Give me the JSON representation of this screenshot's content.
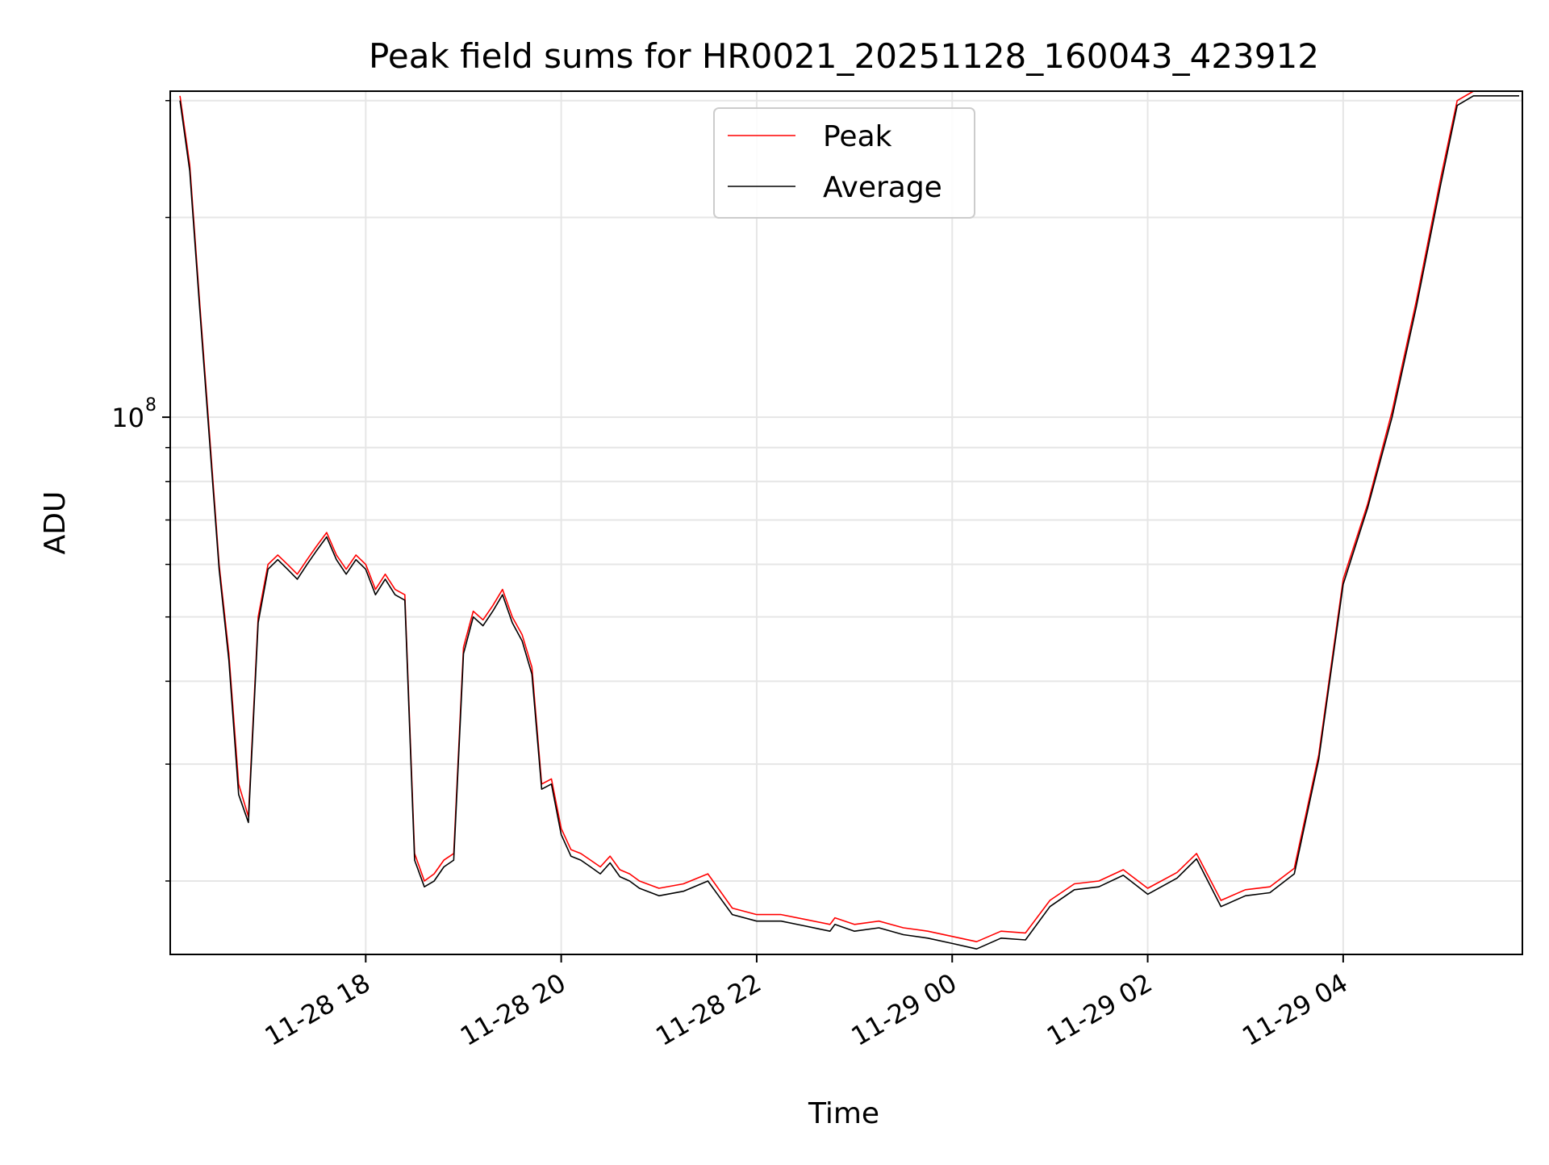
{
  "chart_data": {
    "type": "line",
    "title": "Peak field sums for HR0021_20251128_160043_423912",
    "xlabel": "Time",
    "ylabel": "ADU",
    "y_scale": "log",
    "x_axis_type": "datetime",
    "xlim": [
      "2025-11-28 16:00",
      "2025-11-29 05:50"
    ],
    "ylim": [
      15500000,
      310000000
    ],
    "x_ticks": [
      {
        "value": "2025-11-28 18:00",
        "label": "11-28 18"
      },
      {
        "value": "2025-11-28 20:00",
        "label": "11-28 20"
      },
      {
        "value": "2025-11-28 22:00",
        "label": "11-28 22"
      },
      {
        "value": "2025-11-29 00:00",
        "label": "11-29 00"
      },
      {
        "value": "2025-11-29 02:00",
        "label": "11-29 02"
      },
      {
        "value": "2025-11-29 04:00",
        "label": "11-29 04"
      }
    ],
    "y_major_ticks": [
      {
        "value": 100000000,
        "base": "10",
        "exponent": "8"
      }
    ],
    "y_minor_ticks": [
      20000000,
      30000000,
      40000000,
      50000000,
      60000000,
      70000000,
      80000000,
      90000000,
      200000000,
      300000000
    ],
    "grid": true,
    "legend_position": "top-center",
    "series": [
      {
        "name": "Peak",
        "color": "#ff0000",
        "x": [
          "2025-11-28 16:06",
          "2025-11-28 16:12",
          "2025-11-28 16:18",
          "2025-11-28 16:24",
          "2025-11-28 16:30",
          "2025-11-28 16:36",
          "2025-11-28 16:42",
          "2025-11-28 16:48",
          "2025-11-28 16:54",
          "2025-11-28 17:00",
          "2025-11-28 17:06",
          "2025-11-28 17:12",
          "2025-11-28 17:18",
          "2025-11-28 17:24",
          "2025-11-28 17:30",
          "2025-11-28 17:36",
          "2025-11-28 17:42",
          "2025-11-28 17:48",
          "2025-11-28 17:54",
          "2025-11-28 18:00",
          "2025-11-28 18:06",
          "2025-11-28 18:12",
          "2025-11-28 18:18",
          "2025-11-28 18:24",
          "2025-11-28 18:30",
          "2025-11-28 18:36",
          "2025-11-28 18:42",
          "2025-11-28 18:48",
          "2025-11-28 18:54",
          "2025-11-28 19:00",
          "2025-11-28 19:06",
          "2025-11-28 19:12",
          "2025-11-28 19:18",
          "2025-11-28 19:24",
          "2025-11-28 19:30",
          "2025-11-28 19:36",
          "2025-11-28 19:42",
          "2025-11-28 19:48",
          "2025-11-28 19:54",
          "2025-11-28 20:00",
          "2025-11-28 20:06",
          "2025-11-28 20:12",
          "2025-11-28 20:18",
          "2025-11-28 20:24",
          "2025-11-28 20:30",
          "2025-11-28 20:36",
          "2025-11-28 20:42",
          "2025-11-28 20:48",
          "2025-11-28 21:00",
          "2025-11-28 21:15",
          "2025-11-28 21:30",
          "2025-11-28 21:45",
          "2025-11-28 22:00",
          "2025-11-28 22:15",
          "2025-11-28 22:30",
          "2025-11-28 22:45",
          "2025-11-28 22:48",
          "2025-11-28 23:00",
          "2025-11-28 23:15",
          "2025-11-28 23:30",
          "2025-11-28 23:45",
          "2025-11-29 00:00",
          "2025-11-29 00:15",
          "2025-11-29 00:30",
          "2025-11-29 00:45",
          "2025-11-29 01:00",
          "2025-11-29 01:15",
          "2025-11-29 01:30",
          "2025-11-29 01:45",
          "2025-11-29 02:00",
          "2025-11-29 02:18",
          "2025-11-29 02:30",
          "2025-11-29 02:45",
          "2025-11-29 03:00",
          "2025-11-29 03:15",
          "2025-11-29 03:30",
          "2025-11-29 03:45",
          "2025-11-29 04:00",
          "2025-11-29 04:15",
          "2025-11-29 04:30",
          "2025-11-29 04:45",
          "2025-11-29 05:00",
          "2025-11-29 05:10",
          "2025-11-29 05:20",
          "2025-11-29 05:30",
          "2025-11-29 05:40",
          "2025-11-29 05:48"
        ],
        "values": [
          305000000,
          240000000,
          150000000,
          95000000,
          60000000,
          44000000,
          28000000,
          25000000,
          50000000,
          60000000,
          62000000,
          60000000,
          58000000,
          61000000,
          64000000,
          67000000,
          62000000,
          59000000,
          62000000,
          60000000,
          55000000,
          58000000,
          55000000,
          54000000,
          22000000,
          20000000,
          20500000,
          21500000,
          22000000,
          45000000,
          51000000,
          49500000,
          52000000,
          55000000,
          50000000,
          47000000,
          42000000,
          28000000,
          28500000,
          24000000,
          22300000,
          22000000,
          21500000,
          21000000,
          21800000,
          20800000,
          20500000,
          20000000,
          19500000,
          19800000,
          20500000,
          18200000,
          17800000,
          17800000,
          17500000,
          17200000,
          17600000,
          17200000,
          17400000,
          17000000,
          16800000,
          16500000,
          16200000,
          16800000,
          16700000,
          18700000,
          19800000,
          20000000,
          20800000,
          19500000,
          20600000,
          22000000,
          18700000,
          19400000,
          19600000,
          20900000,
          31000000,
          57000000,
          74000000,
          102000000,
          150000000,
          230000000,
          300000000,
          310000000,
          310000000,
          310000000,
          310000000
        ]
      },
      {
        "name": "Average",
        "color": "#000000",
        "x": [
          "2025-11-28 16:06",
          "2025-11-28 16:12",
          "2025-11-28 16:18",
          "2025-11-28 16:24",
          "2025-11-28 16:30",
          "2025-11-28 16:36",
          "2025-11-28 16:42",
          "2025-11-28 16:48",
          "2025-11-28 16:54",
          "2025-11-28 17:00",
          "2025-11-28 17:06",
          "2025-11-28 17:12",
          "2025-11-28 17:18",
          "2025-11-28 17:24",
          "2025-11-28 17:30",
          "2025-11-28 17:36",
          "2025-11-28 17:42",
          "2025-11-28 17:48",
          "2025-11-28 17:54",
          "2025-11-28 18:00",
          "2025-11-28 18:06",
          "2025-11-28 18:12",
          "2025-11-28 18:18",
          "2025-11-28 18:24",
          "2025-11-28 18:30",
          "2025-11-28 18:36",
          "2025-11-28 18:42",
          "2025-11-28 18:48",
          "2025-11-28 18:54",
          "2025-11-28 19:00",
          "2025-11-28 19:06",
          "2025-11-28 19:12",
          "2025-11-28 19:18",
          "2025-11-28 19:24",
          "2025-11-28 19:30",
          "2025-11-28 19:36",
          "2025-11-28 19:42",
          "2025-11-28 19:48",
          "2025-11-28 19:54",
          "2025-11-28 20:00",
          "2025-11-28 20:06",
          "2025-11-28 20:12",
          "2025-11-28 20:18",
          "2025-11-28 20:24",
          "2025-11-28 20:30",
          "2025-11-28 20:36",
          "2025-11-28 20:42",
          "2025-11-28 20:48",
          "2025-11-28 21:00",
          "2025-11-28 21:15",
          "2025-11-28 21:30",
          "2025-11-28 21:45",
          "2025-11-28 22:00",
          "2025-11-28 22:15",
          "2025-11-28 22:30",
          "2025-11-28 22:45",
          "2025-11-28 22:48",
          "2025-11-28 23:00",
          "2025-11-28 23:15",
          "2025-11-28 23:30",
          "2025-11-28 23:45",
          "2025-11-29 00:00",
          "2025-11-29 00:15",
          "2025-11-29 00:30",
          "2025-11-29 00:45",
          "2025-11-29 01:00",
          "2025-11-29 01:15",
          "2025-11-29 01:30",
          "2025-11-29 01:45",
          "2025-11-29 02:00",
          "2025-11-29 02:18",
          "2025-11-29 02:30",
          "2025-11-29 02:45",
          "2025-11-29 03:00",
          "2025-11-29 03:15",
          "2025-11-29 03:30",
          "2025-11-29 03:45",
          "2025-11-29 04:00",
          "2025-11-29 04:15",
          "2025-11-29 04:30",
          "2025-11-29 04:45",
          "2025-11-29 05:00",
          "2025-11-29 05:10",
          "2025-11-29 05:20",
          "2025-11-29 05:30",
          "2025-11-29 05:40",
          "2025-11-29 05:48"
        ],
        "values": [
          300000000,
          235000000,
          147000000,
          93000000,
          59000000,
          43000000,
          27000000,
          24500000,
          49000000,
          59000000,
          61000000,
          59000000,
          57000000,
          60000000,
          63000000,
          66000000,
          61000000,
          58000000,
          61000000,
          59000000,
          54000000,
          57000000,
          54000000,
          53000000,
          21500000,
          19600000,
          20000000,
          21000000,
          21500000,
          44000000,
          50000000,
          48500000,
          51000000,
          54000000,
          49000000,
          46000000,
          41000000,
          27500000,
          28000000,
          23500000,
          21800000,
          21500000,
          21000000,
          20500000,
          21300000,
          20300000,
          20000000,
          19500000,
          19000000,
          19300000,
          20000000,
          17800000,
          17400000,
          17400000,
          17100000,
          16800000,
          17200000,
          16800000,
          17000000,
          16600000,
          16400000,
          16100000,
          15800000,
          16400000,
          16300000,
          18300000,
          19400000,
          19600000,
          20400000,
          19100000,
          20200000,
          21600000,
          18300000,
          19000000,
          19200000,
          20500000,
          30500000,
          56000000,
          73000000,
          100000000,
          147000000,
          225000000,
          295000000,
          305000000,
          305000000,
          305000000,
          305000000
        ]
      }
    ]
  }
}
